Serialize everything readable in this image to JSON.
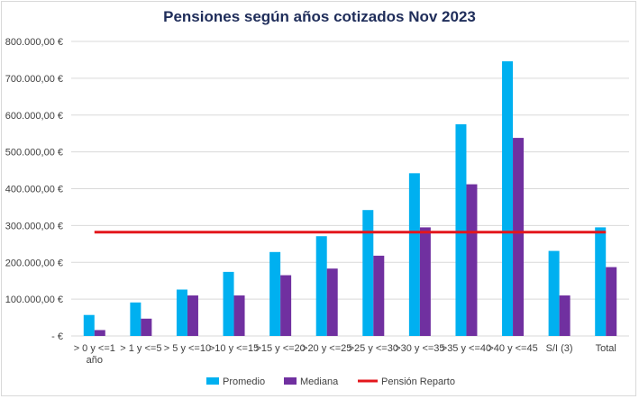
{
  "chart_data": {
    "type": "bar",
    "title": "Pensiones según años cotizados Nov 2023",
    "categories": [
      "> 0 y <=1 año",
      "> 1 y <=5",
      "> 5 y <=10",
      ">10 y <=15",
      ">15 y <=20",
      ">20 y <=25",
      ">25 y <=30",
      ">30 y <=35",
      ">35 y <=40",
      ">40 y <=45",
      "S/I (3)",
      "Total"
    ],
    "series": [
      {
        "name": "Promedio",
        "color": "#00b0f0",
        "values": [
          57000,
          91000,
          126000,
          174000,
          228000,
          271000,
          342000,
          442000,
          575000,
          746000,
          231000,
          295000
        ]
      },
      {
        "name": "Mediana",
        "color": "#7030a0",
        "values": [
          16000,
          47000,
          110000,
          110000,
          165000,
          183000,
          218000,
          295000,
          412000,
          538000,
          110000,
          187000
        ]
      }
    ],
    "reference_line": {
      "name": "Pensión Reparto",
      "value": 282000,
      "color": "#e3161c"
    },
    "ylim": [
      0,
      800000
    ],
    "yticks": [
      {
        "value": 0,
        "label": "-   €"
      },
      {
        "value": 100000,
        "label": "100.000,00 €"
      },
      {
        "value": 200000,
        "label": "200.000,00 €"
      },
      {
        "value": 300000,
        "label": "300.000,00 €"
      },
      {
        "value": 400000,
        "label": "400.000,00 €"
      },
      {
        "value": 500000,
        "label": "500.000,00 €"
      },
      {
        "value": 600000,
        "label": "600.000,00 €"
      },
      {
        "value": 700000,
        "label": "700.000,00 €"
      },
      {
        "value": 800000,
        "label": "800.000,00 €"
      }
    ],
    "grid": true,
    "legend_position": "bottom",
    "legend": [
      "Promedio",
      "Mediana",
      "Pensión Reparto"
    ]
  }
}
